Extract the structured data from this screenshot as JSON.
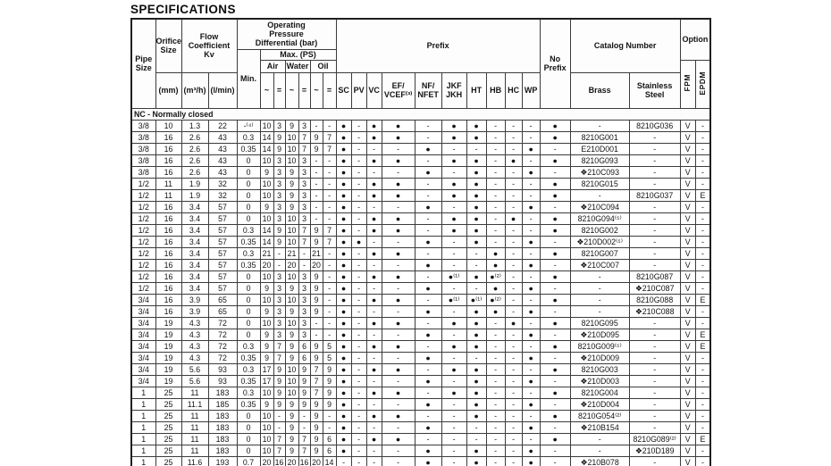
{
  "title": "SPECIFICATIONS",
  "section": "NC - Normally closed",
  "colors": {
    "text": "#141414",
    "grid": "#3c3c3c",
    "background": "#ffffff"
  },
  "header": {
    "pipe_size": "Pipe\nSize",
    "orifice_size": "Orifice\nSize",
    "orifice_unit": "(mm)",
    "flow": "Flow\nCoefficient\nKv",
    "flow_units": [
      "(m³/h)",
      "(l/min)"
    ],
    "opd": "Operating\nPressure\nDifferential (bar)",
    "min": "Min.",
    "max_ps": "Max. (PS)",
    "media": [
      "Air",
      "Water",
      "Oil"
    ],
    "ac": "~",
    "dc": "=",
    "prefix": "Prefix",
    "prefix_cols": [
      "SC",
      "PV",
      "VC",
      "EF/\nVCEF⁽³⁾",
      "NF/\nNFET",
      "JKF\nJKH",
      "HT",
      "HB",
      "HC",
      "WP"
    ],
    "no_prefix": "No\nPrefix",
    "catalog": "Catalog Number",
    "brass": "Brass",
    "stainless": "Stainless\nSteel",
    "option": "Option",
    "option_cols": [
      "FPM",
      "EPDM"
    ]
  },
  "rows": [
    [
      "3/8",
      "10",
      "1.3",
      "22",
      "-⁽⁴⁾",
      "10",
      "3",
      "9",
      "3",
      "-",
      "-",
      "●",
      "-",
      "●",
      "●",
      "-",
      "●",
      "●",
      "-",
      "-",
      "-",
      "●",
      "-",
      "8210G036",
      "V",
      "-"
    ],
    [
      "3/8",
      "16",
      "2.6",
      "43",
      "0.3",
      "14",
      "9",
      "10",
      "7",
      "9",
      "7",
      "●",
      "-",
      "●",
      "●",
      "-",
      "●",
      "●",
      "-",
      "-",
      "-",
      "●",
      "8210G001",
      "-",
      "V",
      "-"
    ],
    [
      "3/8",
      "16",
      "2.6",
      "43",
      "0.35",
      "14",
      "9",
      "10",
      "7",
      "9",
      "7",
      "●",
      "-",
      "-",
      "-",
      "●",
      "-",
      "-",
      "-",
      "-",
      "●",
      "-",
      "E210D001",
      "-",
      "V",
      "-"
    ],
    [
      "3/8",
      "16",
      "2.6",
      "43",
      "0",
      "10",
      "3",
      "10",
      "3",
      "-",
      "-",
      "●",
      "-",
      "●",
      "●",
      "-",
      "●",
      "●",
      "-",
      "●",
      "-",
      "●",
      "8210G093",
      "-",
      "V",
      "-"
    ],
    [
      "3/8",
      "16",
      "2.6",
      "43",
      "0",
      "9",
      "3",
      "9",
      "3",
      "-",
      "-",
      "●",
      "-",
      "-",
      "-",
      "●",
      "-",
      "●",
      "-",
      "-",
      "●",
      "-",
      "❖210C093",
      "-",
      "V",
      "-"
    ],
    [
      "1/2",
      "11",
      "1.9",
      "32",
      "0",
      "10",
      "3",
      "9",
      "3",
      "-",
      "-",
      "●",
      "-",
      "●",
      "●",
      "-",
      "●",
      "●",
      "-",
      "-",
      "-",
      "●",
      "8210G015",
      "-",
      "V",
      "-"
    ],
    [
      "1/2",
      "11",
      "1.9",
      "32",
      "0",
      "10",
      "3",
      "9",
      "3",
      "-",
      "-",
      "●",
      "-",
      "●",
      "●",
      "-",
      "●",
      "●",
      "-",
      "-",
      "-",
      "●",
      "-",
      "8210G037",
      "V",
      "E"
    ],
    [
      "1/2",
      "16",
      "3.4",
      "57",
      "0",
      "9",
      "3",
      "9",
      "3",
      "-",
      "-",
      "●",
      "-",
      "-",
      "-",
      "●",
      "-",
      "●",
      "-",
      "-",
      "●",
      "-",
      "❖210C094",
      "-",
      "V",
      "-"
    ],
    [
      "1/2",
      "16",
      "3.4",
      "57",
      "0",
      "10",
      "3",
      "10",
      "3",
      "-",
      "-",
      "●",
      "-",
      "●",
      "●",
      "-",
      "●",
      "●",
      "-",
      "●",
      "-",
      "●",
      "8210G094⁽⁵⁾",
      "-",
      "V",
      "-"
    ],
    [
      "1/2",
      "16",
      "3.4",
      "57",
      "0.3",
      "14",
      "9",
      "10",
      "7",
      "9",
      "7",
      "●",
      "-",
      "●",
      "●",
      "-",
      "●",
      "●",
      "-",
      "-",
      "-",
      "●",
      "8210G002",
      "-",
      "V",
      "-"
    ],
    [
      "1/2",
      "16",
      "3.4",
      "57",
      "0.35",
      "14",
      "9",
      "10",
      "7",
      "9",
      "7",
      "●",
      "●",
      "-",
      "-",
      "●",
      "-",
      "●",
      "-",
      "-",
      "●",
      "-",
      "❖210D002⁽⁵⁾",
      "-",
      "V",
      "-"
    ],
    [
      "1/2",
      "16",
      "3.4",
      "57",
      "0.3",
      "21",
      "-",
      "21",
      "-",
      "21",
      "-",
      "●",
      "-",
      "●",
      "●",
      "-",
      "-",
      "-",
      "●",
      "-",
      "-",
      "●",
      "8210G007",
      "-",
      "V",
      "-"
    ],
    [
      "1/2",
      "16",
      "3.4",
      "57",
      "0.35",
      "20",
      "-",
      "20",
      "-",
      "20",
      "-",
      "●",
      "-",
      "-",
      "-",
      "●",
      "-",
      "-",
      "●",
      "-",
      "●",
      "-",
      "❖210C007",
      "-",
      "V",
      "-"
    ],
    [
      "1/2",
      "16",
      "3.4",
      "57",
      "0",
      "10",
      "3",
      "10",
      "3",
      "9",
      "-",
      "●",
      "-",
      "●",
      "●",
      "-",
      "●⁽¹⁾",
      "●",
      "●⁽²⁾",
      "-",
      "-",
      "●",
      "-",
      "8210G087",
      "V",
      "-"
    ],
    [
      "1/2",
      "16",
      "3.4",
      "57",
      "0",
      "9",
      "3",
      "9",
      "3",
      "9",
      "-",
      "●",
      "-",
      "-",
      "-",
      "●",
      "-",
      "-",
      "●",
      "-",
      "●",
      "-",
      "-",
      "❖210C087",
      "V",
      "-"
    ],
    [
      "3/4",
      "16",
      "3.9",
      "65",
      "0",
      "10",
      "3",
      "10",
      "3",
      "9",
      "-",
      "●",
      "-",
      "●",
      "●",
      "-",
      "●⁽¹⁾",
      "●⁽¹⁾",
      "●⁽²⁾",
      "-",
      "-",
      "●",
      "-",
      "8210G088",
      "V",
      "E"
    ],
    [
      "3/4",
      "16",
      "3.9",
      "65",
      "0",
      "9",
      "3",
      "9",
      "3",
      "9",
      "-",
      "●",
      "-",
      "-",
      "-",
      "●",
      "-",
      "●",
      "●",
      "-",
      "●",
      "-",
      "-",
      "❖210C088",
      "V",
      "-"
    ],
    [
      "3/4",
      "19",
      "4.3",
      "72",
      "0",
      "10",
      "3",
      "10",
      "3",
      "-",
      "-",
      "●",
      "-",
      "●",
      "●",
      "-",
      "●",
      "●",
      "-",
      "●",
      "-",
      "●",
      "8210G095",
      "-",
      "V",
      "-"
    ],
    [
      "3/4",
      "19",
      "4.3",
      "72",
      "0",
      "9",
      "3",
      "9",
      "3",
      "-",
      "-",
      "●",
      "-",
      "-",
      "-",
      "●",
      "-",
      "●",
      "-",
      "-",
      "●",
      "-",
      "❖210D095",
      "-",
      "V",
      "E"
    ],
    [
      "3/4",
      "19",
      "4.3",
      "72",
      "0.3",
      "9",
      "7",
      "9",
      "6",
      "9",
      "5",
      "●",
      "-",
      "●",
      "●",
      "-",
      "●",
      "●",
      "-",
      "-",
      "-",
      "●",
      "8210G009⁽⁵⁾",
      "-",
      "V",
      "E"
    ],
    [
      "3/4",
      "19",
      "4.3",
      "72",
      "0.35",
      "9",
      "7",
      "9",
      "6",
      "9",
      "5",
      "●",
      "-",
      "-",
      "-",
      "●",
      "-",
      "-",
      "-",
      "-",
      "●",
      "-",
      "❖210D009",
      "-",
      "V",
      "-"
    ],
    [
      "3/4",
      "19",
      "5.6",
      "93",
      "0.3",
      "17",
      "9",
      "10",
      "9",
      "7",
      "9",
      "●",
      "-",
      "●",
      "●",
      "-",
      "●",
      "●",
      "-",
      "-",
      "-",
      "●",
      "8210G003",
      "-",
      "V",
      "-"
    ],
    [
      "3/4",
      "19",
      "5.6",
      "93",
      "0.35",
      "17",
      "9",
      "10",
      "9",
      "7",
      "9",
      "●",
      "-",
      "-",
      "-",
      "●",
      "-",
      "●",
      "-",
      "-",
      "●",
      "-",
      "❖210D003",
      "-",
      "V",
      "-"
    ],
    [
      "1",
      "25",
      "11",
      "183",
      "0.3",
      "10",
      "9",
      "10",
      "9",
      "7",
      "9",
      "●",
      "-",
      "●",
      "●",
      "-",
      "●",
      "●",
      "-",
      "-",
      "-",
      "●",
      "8210G004",
      "-",
      "V",
      "-"
    ],
    [
      "1",
      "25",
      "11.1",
      "185",
      "0.35",
      "9",
      "9",
      "9",
      "9",
      "9",
      "9",
      "●",
      "-",
      "-",
      "-",
      "●",
      "-",
      "●",
      "-",
      "-",
      "●",
      "-",
      "❖210D004",
      "-",
      "V",
      "-"
    ],
    [
      "1",
      "25",
      "11",
      "183",
      "0",
      "10",
      "-",
      "9",
      "-",
      "9",
      "-",
      "●",
      "-",
      "●",
      "●",
      "-",
      "-",
      "●",
      "-",
      "-",
      "-",
      "●",
      "8210G054⁽²⁾",
      "-",
      "V",
      "-"
    ],
    [
      "1",
      "25",
      "11",
      "183",
      "0",
      "10",
      "-",
      "9",
      "-",
      "9",
      "-",
      "●",
      "-",
      "-",
      "-",
      "●",
      "-",
      "-",
      "-",
      "-",
      "●",
      "-",
      "❖210B154",
      "-",
      "V",
      "-"
    ],
    [
      "1",
      "25",
      "11",
      "183",
      "0",
      "10",
      "7",
      "9",
      "7",
      "9",
      "6",
      "●",
      "-",
      "●",
      "●",
      "-",
      "-",
      "-",
      "-",
      "-",
      "-",
      "●",
      "-",
      "8210G089⁽²⁾",
      "V",
      "E"
    ],
    [
      "1",
      "25",
      "11",
      "183",
      "0",
      "10",
      "7",
      "9",
      "7",
      "9",
      "6",
      "●",
      "-",
      "-",
      "-",
      "●",
      "-",
      "●",
      "-",
      "-",
      "●",
      "-",
      "-",
      "❖210D189",
      "V",
      "-"
    ],
    [
      "1",
      "25",
      "11.6",
      "193",
      "0.7",
      "20",
      "16",
      "20",
      "16",
      "20",
      "14",
      "-",
      "-",
      "-",
      "-",
      "●",
      "-",
      "●",
      "-",
      "-",
      "●",
      "-",
      "❖210B078",
      "-",
      "V",
      "-"
    ]
  ],
  "row_col_names": [
    "pipe-size",
    "orifice-mm",
    "kv-m3h",
    "kv-lmin",
    "min-pressure",
    "air-ac",
    "air-dc",
    "water-ac",
    "water-dc",
    "oil-ac",
    "oil-dc",
    "prefix-sc",
    "prefix-pv",
    "prefix-vc",
    "prefix-ef-vcef",
    "prefix-nf-nfet",
    "prefix-jkf-jkh",
    "prefix-ht",
    "prefix-hb",
    "prefix-hc",
    "prefix-wp",
    "no-prefix",
    "catalog-brass",
    "catalog-stainless",
    "option-fpm",
    "option-epdm"
  ]
}
